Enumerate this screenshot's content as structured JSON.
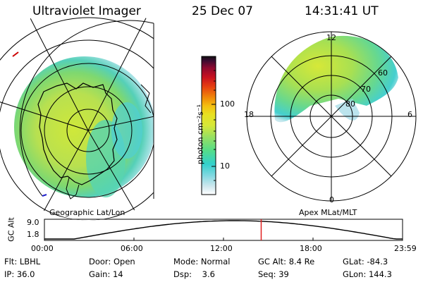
{
  "header": {
    "instrument": "Ultraviolet Imager",
    "date": "25 Dec 07",
    "time": "14:31:41 UT"
  },
  "panels": {
    "left_label": "Geographic Lat/Lon",
    "right_label": "Apex MLat/MLT",
    "mlt_labels": [
      "12",
      "18",
      "6",
      "0"
    ],
    "mlat_labels": [
      "60",
      "70",
      "80"
    ]
  },
  "colorbar": {
    "unit_label": "photon cm⁻²s⁻¹",
    "tick_labels": [
      "100",
      "10"
    ],
    "scale": "log",
    "colors": [
      "#ffffff",
      "#cfe8ee",
      "#7fd8e0",
      "#33d0cc",
      "#55dd88",
      "#9ae060",
      "#d6e838",
      "#e8e020",
      "#f4c010",
      "#f08a08",
      "#e64010",
      "#c81020",
      "#8a0830",
      "#3a0a30",
      "#101010"
    ]
  },
  "timeline": {
    "ylabel": "GC Alt",
    "y_ticks": [
      "9.0",
      "1.8"
    ],
    "x_ticks": [
      "00:00",
      "06:00",
      "12:00",
      "18:00",
      "23:59"
    ],
    "current_time_marker": "14:31"
  },
  "info": {
    "row1": [
      {
        "label": "Flt:",
        "value": "LBHL"
      },
      {
        "label": "Door:",
        "value": "Open"
      },
      {
        "label": "Mode:",
        "value": "Normal"
      },
      {
        "label": "GC Alt:",
        "value": "8.4 Re"
      },
      {
        "label": "GLat:",
        "value": "-84.3"
      }
    ],
    "row2": [
      {
        "label": "IP:",
        "value": "36.0"
      },
      {
        "label": "Gain:",
        "value": "14"
      },
      {
        "label": "Dsp:",
        "value": "3.6"
      },
      {
        "label": "Seq:",
        "value": "39"
      },
      {
        "label": "GLon:",
        "value": "144.3"
      }
    ]
  }
}
